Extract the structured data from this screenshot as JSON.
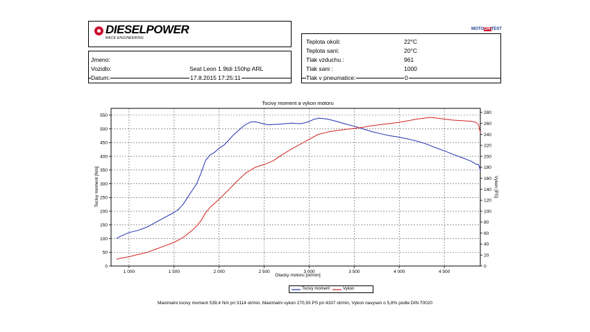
{
  "header": {
    "logo_text": "DIESELPOWER",
    "logo_sub": "RACE ENGINEERING",
    "brand_badge": [
      "MOTO",
      "DN",
      "TEST"
    ]
  },
  "info": {
    "name_label": "Jmeno:",
    "name_value": "",
    "vehicle_label": "Vozidlo:",
    "vehicle_value": "Seat Leon 1.9tdi 150hp ARL",
    "date_label": "Datum:",
    "date_value": "17.8.2015 17:25:11"
  },
  "conditions": [
    {
      "label": "Teplota okoli:",
      "value": "22°C"
    },
    {
      "label": "Teplota sani:",
      "value": "20°C"
    },
    {
      "label": "Tlak vzduchu :",
      "value": "961"
    },
    {
      "label": "Tlak sani :",
      "value": "1000"
    },
    {
      "label": "Tlak v pneumatice:",
      "value": "0"
    }
  ],
  "chart_data": {
    "type": "line",
    "title": "Tocivy moment a vykon motoru",
    "xlabel": "Otacky motoru [ot/min]",
    "ylabel_left": "Tocivy moment [Nm]",
    "ylabel_right": "Vykon [PS]",
    "xlim": [
      800,
      4900
    ],
    "ylim_left": [
      0,
      575
    ],
    "ylim_right": [
      0,
      287.5
    ],
    "x_ticks": [
      1000,
      1500,
      2000,
      2500,
      3000,
      3500,
      4000,
      4500
    ],
    "x_tick_labels": [
      "1 000",
      "1 500",
      "2 000",
      "2 500",
      "3 000",
      "3 500",
      "4 000",
      "4 500"
    ],
    "y_left_ticks": [
      0,
      50,
      100,
      150,
      200,
      250,
      300,
      350,
      400,
      450,
      500,
      550
    ],
    "y_right_ticks": [
      0,
      20,
      40,
      60,
      80,
      100,
      120,
      140,
      160,
      180,
      200,
      220,
      240,
      260,
      280
    ],
    "grid": true,
    "legend_position": "bottom-center",
    "series": [
      {
        "name": "Tocivy moment",
        "axis": "left",
        "color": "#1f2db0",
        "x": [
          860,
          900,
          950,
          1000,
          1100,
          1200,
          1300,
          1400,
          1500,
          1550,
          1600,
          1650,
          1700,
          1750,
          1800,
          1850,
          1900,
          1950,
          2000,
          2050,
          2100,
          2150,
          2200,
          2250,
          2300,
          2350,
          2400,
          2450,
          2500,
          2550,
          2600,
          2700,
          2800,
          2900,
          2950,
          3000,
          3050,
          3114,
          3200,
          3300,
          3400,
          3500,
          3600,
          3700,
          3800,
          3900,
          4000,
          4100,
          4200,
          4300,
          4400,
          4500,
          4600,
          4700,
          4800,
          4850,
          4880,
          4900
        ],
        "y": [
          100,
          108,
          115,
          122,
          130,
          142,
          160,
          178,
          195,
          207,
          225,
          250,
          275,
          300,
          340,
          385,
          405,
          415,
          430,
          440,
          457,
          475,
          490,
          505,
          517,
          525,
          526,
          522,
          518,
          515,
          516,
          518,
          521,
          519,
          522,
          527,
          535,
          539.4,
          536,
          528,
          518,
          510,
          500,
          490,
          482,
          475,
          470,
          463,
          455,
          445,
          432,
          420,
          407,
          395,
          382,
          372,
          370,
          350
        ]
      },
      {
        "name": "Vykon",
        "axis": "right",
        "color": "#d42020",
        "x": [
          860,
          900,
          1000,
          1100,
          1200,
          1300,
          1400,
          1500,
          1600,
          1700,
          1750,
          1800,
          1850,
          1900,
          2000,
          2100,
          2200,
          2300,
          2400,
          2500,
          2600,
          2700,
          2800,
          2900,
          3000,
          3100,
          3200,
          3300,
          3400,
          3500,
          3600,
          3700,
          3800,
          3900,
          4000,
          4100,
          4200,
          4337,
          4400,
          4500,
          4600,
          4700,
          4800,
          4850,
          4880,
          4900
        ],
        "y": [
          12,
          14,
          17,
          21,
          25,
          31,
          37,
          43,
          52,
          65,
          73,
          83,
          97,
          107,
          122,
          138,
          155,
          170,
          180,
          185,
          192,
          203,
          213,
          222,
          231,
          240,
          244,
          247,
          249,
          251,
          253,
          256,
          258,
          260,
          262,
          265,
          268,
          270.93,
          270,
          268,
          266,
          265,
          264,
          262,
          258,
          243
        ]
      }
    ]
  },
  "footnote": "Maximalni tocivy moment 539,4 Nm pri 3114 ot/min,  Maximalni vykon 270,93 PS pri 4337 ot/min,  Vykon navysen o 5,8% podle DIN 70020"
}
